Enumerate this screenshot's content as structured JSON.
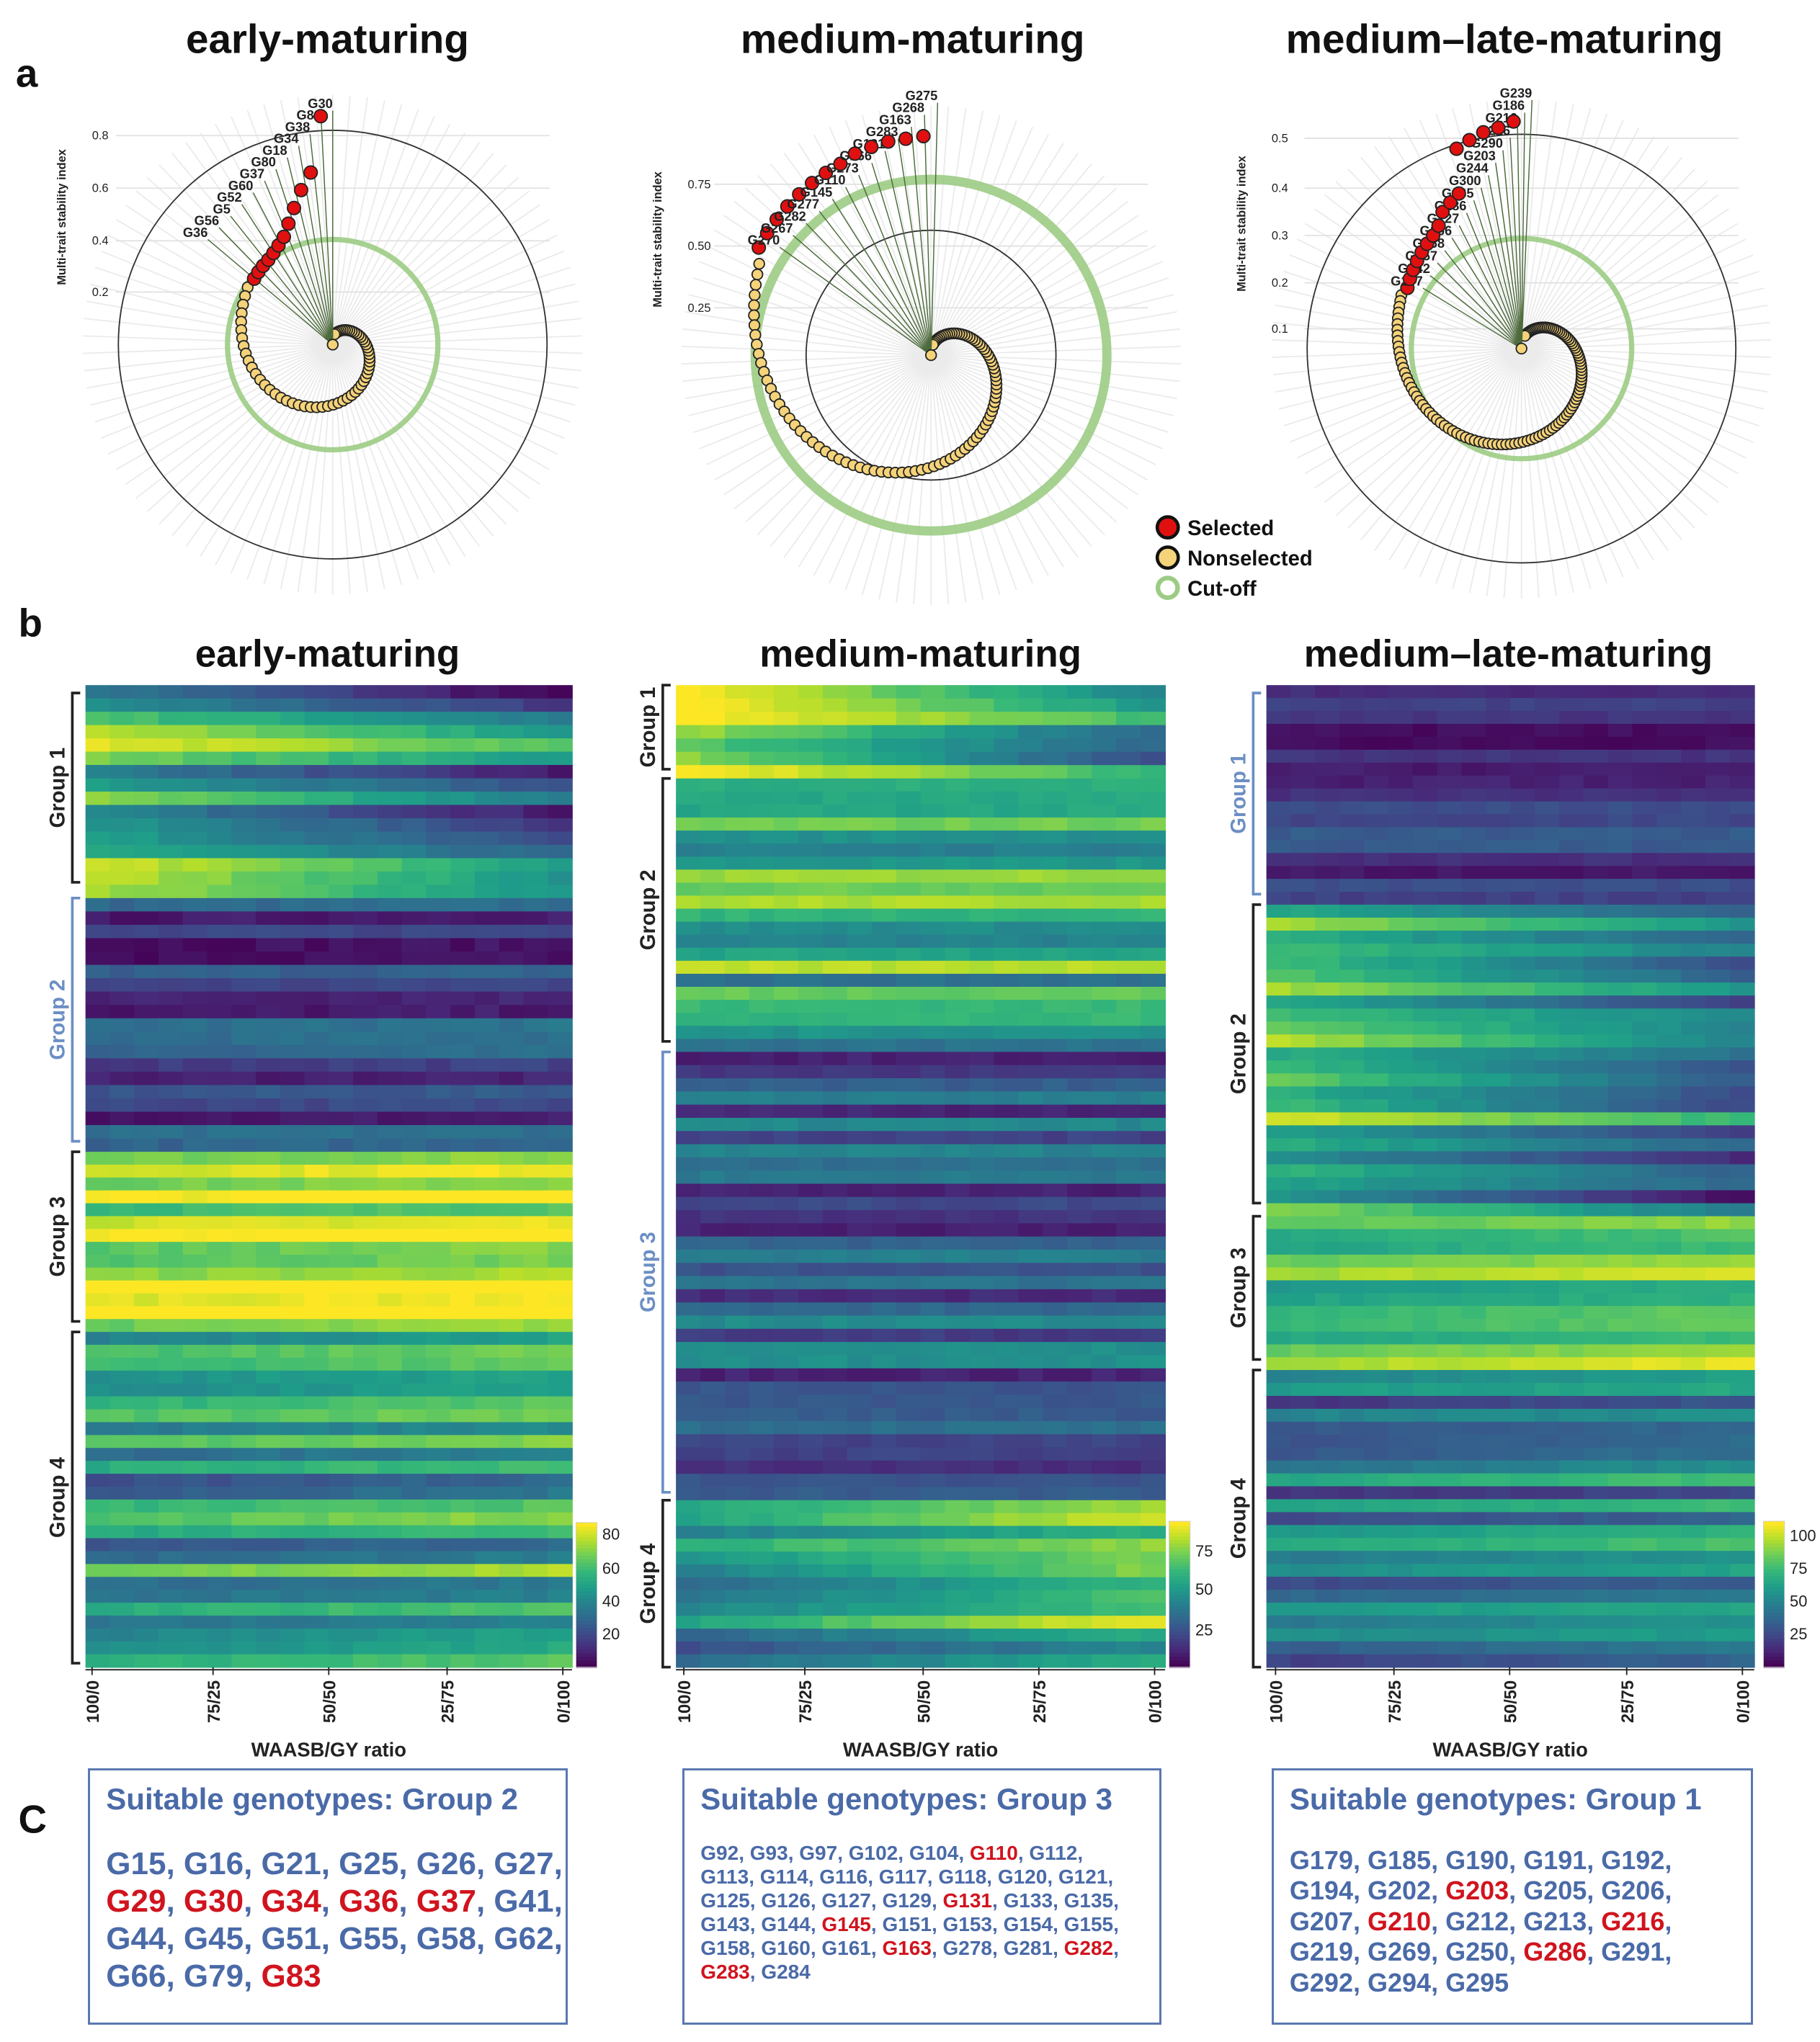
{
  "panel_letters": {
    "a": "a",
    "b": "b",
    "c": "C"
  },
  "titles": [
    "early-maturing",
    "medium-maturing",
    "medium–late-maturing"
  ],
  "legend": [
    {
      "label": "Selected",
      "color": "#e01010"
    },
    {
      "label": "Nonselected",
      "color": "#f5d37a"
    },
    {
      "label": "Cut-off",
      "color": "#9ccc84"
    }
  ],
  "chart_data": [
    {
      "type": "scatter",
      "subtype": "polar",
      "title": "early-maturing",
      "ylabel": "Multi-trait stability index",
      "yticks": [
        "0.2",
        "0.4",
        "0.6",
        "0.8"
      ],
      "cutoff": 0.4,
      "selected": [
        {
          "name": "G36",
          "value": 0.39
        },
        {
          "name": "G56",
          "value": 0.395
        },
        {
          "name": "G5",
          "value": 0.4
        },
        {
          "name": "G52",
          "value": 0.405
        },
        {
          "name": "G60",
          "value": 0.415
        },
        {
          "name": "G37",
          "value": 0.43
        },
        {
          "name": "G80",
          "value": 0.45
        },
        {
          "name": "G18",
          "value": 0.49
        },
        {
          "name": "G34",
          "value": 0.54
        },
        {
          "name": "G38",
          "value": 0.6
        },
        {
          "name": "G83",
          "value": 0.66
        },
        {
          "name": "G30",
          "value": 0.87
        }
      ]
    },
    {
      "type": "scatter",
      "subtype": "polar",
      "title": "medium-maturing",
      "ylabel": "Multi-trait stability index",
      "yticks": [
        "0.25",
        "0.50",
        "0.75"
      ],
      "cutoff": 0.77,
      "selected": [
        {
          "name": "G270",
          "value": 0.88
        },
        {
          "name": "G267",
          "value": 0.885
        },
        {
          "name": "G282",
          "value": 0.89
        },
        {
          "name": "G277",
          "value": 0.895
        },
        {
          "name": "G145",
          "value": 0.9
        },
        {
          "name": "G110",
          "value": 0.905
        },
        {
          "name": "G273",
          "value": 0.91
        },
        {
          "name": "G266",
          "value": 0.915
        },
        {
          "name": "G131",
          "value": 0.93
        },
        {
          "name": "G283",
          "value": 0.935
        },
        {
          "name": "G163",
          "value": 0.94
        },
        {
          "name": "G268",
          "value": 0.94
        },
        {
          "name": "G275",
          "value": 0.945
        }
      ]
    },
    {
      "type": "scatter",
      "subtype": "polar",
      "title": "medium–late-maturing",
      "ylabel": "Multi-trait stability index",
      "yticks": [
        "0.1",
        "0.2",
        "0.3",
        "0.4",
        "0.5"
      ],
      "cutoff": 0.29,
      "selected": [
        {
          "name": "G177",
          "value": 0.33
        },
        {
          "name": "G242",
          "value": 0.335
        },
        {
          "name": "G257",
          "value": 0.34
        },
        {
          "name": "G168",
          "value": 0.345
        },
        {
          "name": "G166",
          "value": 0.35
        },
        {
          "name": "G227",
          "value": 0.355
        },
        {
          "name": "G286",
          "value": 0.36
        },
        {
          "name": "G165",
          "value": 0.37
        },
        {
          "name": "G300",
          "value": 0.39
        },
        {
          "name": "G244",
          "value": 0.4
        },
        {
          "name": "G203",
          "value": 0.41
        },
        {
          "name": "G290",
          "value": 0.5
        },
        {
          "name": "G216",
          "value": 0.51
        },
        {
          "name": "G210",
          "value": 0.52
        },
        {
          "name": "G186",
          "value": 0.525
        },
        {
          "name": "G239",
          "value": 0.536
        }
      ]
    },
    {
      "type": "heatmap",
      "title": "early-maturing",
      "xlabel": "WAASB/GY ratio",
      "xticks": [
        "100/0",
        "75/25",
        "50/50",
        "25/75",
        "0/100"
      ],
      "groups": [
        "Group 1",
        "Group 2",
        "Group 3",
        "Group 4"
      ],
      "highlighted_group": "Group 2",
      "colorbar_ticks": [
        "20",
        "40",
        "60",
        "80"
      ],
      "colorscale": "viridis"
    },
    {
      "type": "heatmap",
      "title": "medium-maturing",
      "xlabel": "WAASB/GY ratio",
      "xticks": [
        "100/0",
        "75/25",
        "50/50",
        "25/75",
        "0/100"
      ],
      "groups": [
        "Group 1",
        "Group 2",
        "Group 3",
        "Group 4"
      ],
      "highlighted_group": "Group 3",
      "colorbar_ticks": [
        "25",
        "50",
        "75"
      ],
      "colorscale": "viridis"
    },
    {
      "type": "heatmap",
      "title": "medium–late-maturing",
      "xlabel": "WAASB/GY ratio",
      "xticks": [
        "100/0",
        "75/25",
        "50/50",
        "25/75",
        "0/100"
      ],
      "groups": [
        "Group 1",
        "Group 2",
        "Group 3",
        "Group 4"
      ],
      "highlighted_group": "Group 1",
      "colorbar_ticks": [
        "25",
        "50",
        "75",
        "100"
      ],
      "colorscale": "viridis"
    }
  ],
  "boxes": [
    {
      "title": "Suitable genotypes: Group 2",
      "genotypes": [
        {
          "id": "G15",
          "sel": false
        },
        {
          "id": "G16",
          "sel": false
        },
        {
          "id": "G21",
          "sel": false
        },
        {
          "id": "G25",
          "sel": false
        },
        {
          "id": "G26",
          "sel": false
        },
        {
          "id": "G27",
          "sel": false
        },
        {
          "id": "G29",
          "sel": true
        },
        {
          "id": "G30",
          "sel": true
        },
        {
          "id": "G34",
          "sel": true
        },
        {
          "id": "G36",
          "sel": true
        },
        {
          "id": "G37",
          "sel": true
        },
        {
          "id": "G41",
          "sel": false
        },
        {
          "id": "G44",
          "sel": false
        },
        {
          "id": "G45",
          "sel": false
        },
        {
          "id": "G51",
          "sel": false
        },
        {
          "id": "G55",
          "sel": false
        },
        {
          "id": "G58",
          "sel": false
        },
        {
          "id": "G62",
          "sel": false
        },
        {
          "id": "G66",
          "sel": false
        },
        {
          "id": "G79",
          "sel": false
        },
        {
          "id": "G83",
          "sel": true
        }
      ]
    },
    {
      "title": "Suitable genotypes: Group 3",
      "genotypes": [
        {
          "id": "G92",
          "sel": false
        },
        {
          "id": "G93",
          "sel": false
        },
        {
          "id": "G97",
          "sel": false
        },
        {
          "id": "G102",
          "sel": false
        },
        {
          "id": "G104",
          "sel": false
        },
        {
          "id": "G110",
          "sel": true
        },
        {
          "id": "G112",
          "sel": false
        },
        {
          "id": "G113",
          "sel": false
        },
        {
          "id": "G114",
          "sel": false
        },
        {
          "id": "G116",
          "sel": false
        },
        {
          "id": "G117",
          "sel": false
        },
        {
          "id": "G118",
          "sel": false
        },
        {
          "id": "G120",
          "sel": false
        },
        {
          "id": "G121",
          "sel": false
        },
        {
          "id": "G125",
          "sel": false
        },
        {
          "id": "G126",
          "sel": false
        },
        {
          "id": "G127",
          "sel": false
        },
        {
          "id": "G129",
          "sel": false
        },
        {
          "id": "G131",
          "sel": true
        },
        {
          "id": "G133",
          "sel": false
        },
        {
          "id": "G135",
          "sel": false
        },
        {
          "id": "G143",
          "sel": false
        },
        {
          "id": "G144",
          "sel": false
        },
        {
          "id": "G145",
          "sel": true
        },
        {
          "id": "G151",
          "sel": false
        },
        {
          "id": "G153",
          "sel": false
        },
        {
          "id": "G154",
          "sel": false
        },
        {
          "id": "G155",
          "sel": false
        },
        {
          "id": "G158",
          "sel": false
        },
        {
          "id": "G160",
          "sel": false
        },
        {
          "id": "G161",
          "sel": false
        },
        {
          "id": "G163",
          "sel": true
        },
        {
          "id": "G278",
          "sel": false
        },
        {
          "id": "G281",
          "sel": false
        },
        {
          "id": "G282",
          "sel": true
        },
        {
          "id": "G283",
          "sel": true
        },
        {
          "id": "G284",
          "sel": false
        }
      ]
    },
    {
      "title": "Suitable genotypes: Group 1",
      "genotypes": [
        {
          "id": "G179",
          "sel": false
        },
        {
          "id": "G185",
          "sel": false
        },
        {
          "id": "G190",
          "sel": false
        },
        {
          "id": "G191",
          "sel": false
        },
        {
          "id": "G192",
          "sel": false
        },
        {
          "id": "G194",
          "sel": false
        },
        {
          "id": "G202",
          "sel": false
        },
        {
          "id": "G203",
          "sel": true
        },
        {
          "id": "G205",
          "sel": false
        },
        {
          "id": "G206",
          "sel": false
        },
        {
          "id": "G207",
          "sel": false
        },
        {
          "id": "G210",
          "sel": true
        },
        {
          "id": "G212",
          "sel": false
        },
        {
          "id": "G213",
          "sel": false
        },
        {
          "id": "G216",
          "sel": true
        },
        {
          "id": "G219",
          "sel": false
        },
        {
          "id": "G269",
          "sel": false
        },
        {
          "id": "G250",
          "sel": false
        },
        {
          "id": "G286",
          "sel": true
        },
        {
          "id": "G291",
          "sel": false
        },
        {
          "id": "G292",
          "sel": false
        },
        {
          "id": "G294",
          "sel": false
        },
        {
          "id": "G295",
          "sel": false
        }
      ]
    }
  ]
}
